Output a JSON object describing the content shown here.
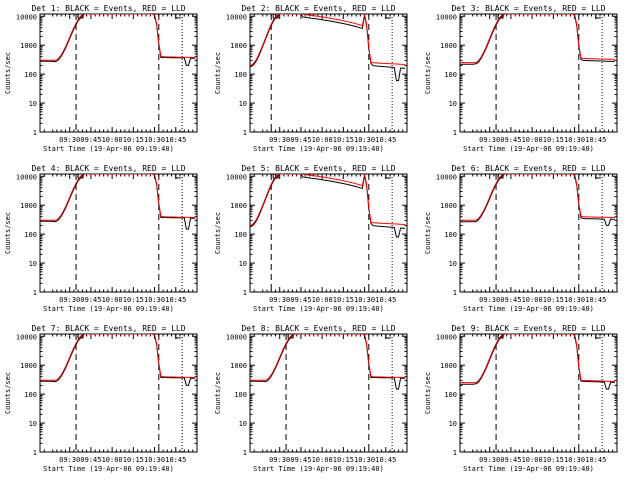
{
  "figure": {
    "xlabel": "Start Time (19-Apr-06 09:19:40)",
    "ylabel": "Counts/sec",
    "colors": {
      "events": "#000000",
      "lld": "#ff0000",
      "axes": "#000000",
      "background": "#ffffff"
    }
  },
  "chart_data": [
    {
      "type": "line",
      "title": "Det 1: BLACK = Events, RED = LLD",
      "xticks": [
        "09:30",
        "09:45",
        "10:00",
        "10:15",
        "10:30",
        "10:45"
      ],
      "yticks": [
        "1",
        "10",
        "100",
        "1000",
        "10000"
      ],
      "ylim": [
        1,
        12000
      ],
      "yscale": "log",
      "x": [],
      "series": [],
      "dashed_vlines": [],
      "dotted_vlines": []
    },
    {
      "type": "line",
      "title": "Det 2: BLACK = Events, RED = LLD",
      "xticks": [
        "09:30",
        "09:45",
        "10:00",
        "10:15",
        "10:30",
        "10:45"
      ],
      "yticks": [
        "1",
        "10",
        "100",
        "1000",
        "10000"
      ],
      "ylim": [
        1,
        12000
      ],
      "yscale": "log",
      "x": [],
      "series": [],
      "dashed_vlines": [],
      "dotted_vlines": []
    },
    {
      "type": "line",
      "title": "Det 3: BLACK = Events, RED = LLD",
      "xticks": [
        "09:30",
        "09:45",
        "10:00",
        "10:15",
        "10:30",
        "10:45"
      ],
      "yticks": [
        "1",
        "10",
        "100",
        "1000",
        "10000"
      ],
      "ylim": [
        1,
        12000
      ],
      "yscale": "log",
      "x": [],
      "series": [],
      "dashed_vlines": [],
      "dotted_vlines": []
    },
    {
      "type": "line",
      "title": "Det 4: BLACK = Events, RED = LLD",
      "xticks": [
        "09:30",
        "09:45",
        "10:00",
        "10:15",
        "10:30",
        "10:45"
      ],
      "yticks": [
        "1",
        "10",
        "100",
        "1000",
        "10000"
      ],
      "ylim": [
        1,
        12000
      ],
      "yscale": "log",
      "x": [],
      "series": [],
      "dashed_vlines": [],
      "dotted_vlines": []
    },
    {
      "type": "line",
      "title": "Det 5: BLACK = Events, RED = LLD",
      "xticks": [
        "09:30",
        "09:45",
        "10:00",
        "10:15",
        "10:30",
        "10:45"
      ],
      "yticks": [
        "1",
        "10",
        "100",
        "1000",
        "10000"
      ],
      "ylim": [
        1,
        12000
      ],
      "yscale": "log",
      "x": [],
      "series": [],
      "dashed_vlines": [],
      "dotted_vlines": []
    },
    {
      "type": "line",
      "title": "Det 6: BLACK = Events, RED = LLD",
      "xticks": [
        "09:30",
        "09:45",
        "10:00",
        "10:15",
        "10:30",
        "10:45"
      ],
      "yticks": [
        "1",
        "10",
        "100",
        "1000",
        "10000"
      ],
      "ylim": [
        1,
        12000
      ],
      "yscale": "log",
      "x": [],
      "series": [],
      "dashed_vlines": [],
      "dotted_vlines": []
    },
    {
      "type": "line",
      "title": "Det 7: BLACK = Events, RED = LLD",
      "xticks": [
        "09:30",
        "09:45",
        "10:00",
        "10:15",
        "10:30",
        "10:45"
      ],
      "yticks": [
        "1",
        "10",
        "100",
        "1000",
        "10000"
      ],
      "ylim": [
        1,
        12000
      ],
      "yscale": "log",
      "x": [],
      "series": [],
      "dashed_vlines": [],
      "dotted_vlines": []
    },
    {
      "type": "line",
      "title": "Det 8: BLACK = Events, RED = LLD",
      "xticks": [
        "09:30",
        "09:45",
        "10:00",
        "10:15",
        "10:30",
        "10:45"
      ],
      "yticks": [
        "1",
        "10",
        "100",
        "1000",
        "10000"
      ],
      "ylim": [
        1,
        12000
      ],
      "yscale": "log",
      "x": [],
      "series": [],
      "dashed_vlines": [],
      "dotted_vlines": []
    },
    {
      "type": "line",
      "title": "Det 9: BLACK = Events, RED = LLD",
      "xticks": [
        "09:30",
        "09:45",
        "10:00",
        "10:15",
        "10:30",
        "10:45"
      ],
      "yticks": [
        "1",
        "10",
        "100",
        "1000",
        "10000"
      ],
      "ylim": [
        1,
        12000
      ],
      "yscale": "log",
      "x": [],
      "series": [],
      "dashed_vlines": [],
      "dotted_vlines": []
    }
  ]
}
